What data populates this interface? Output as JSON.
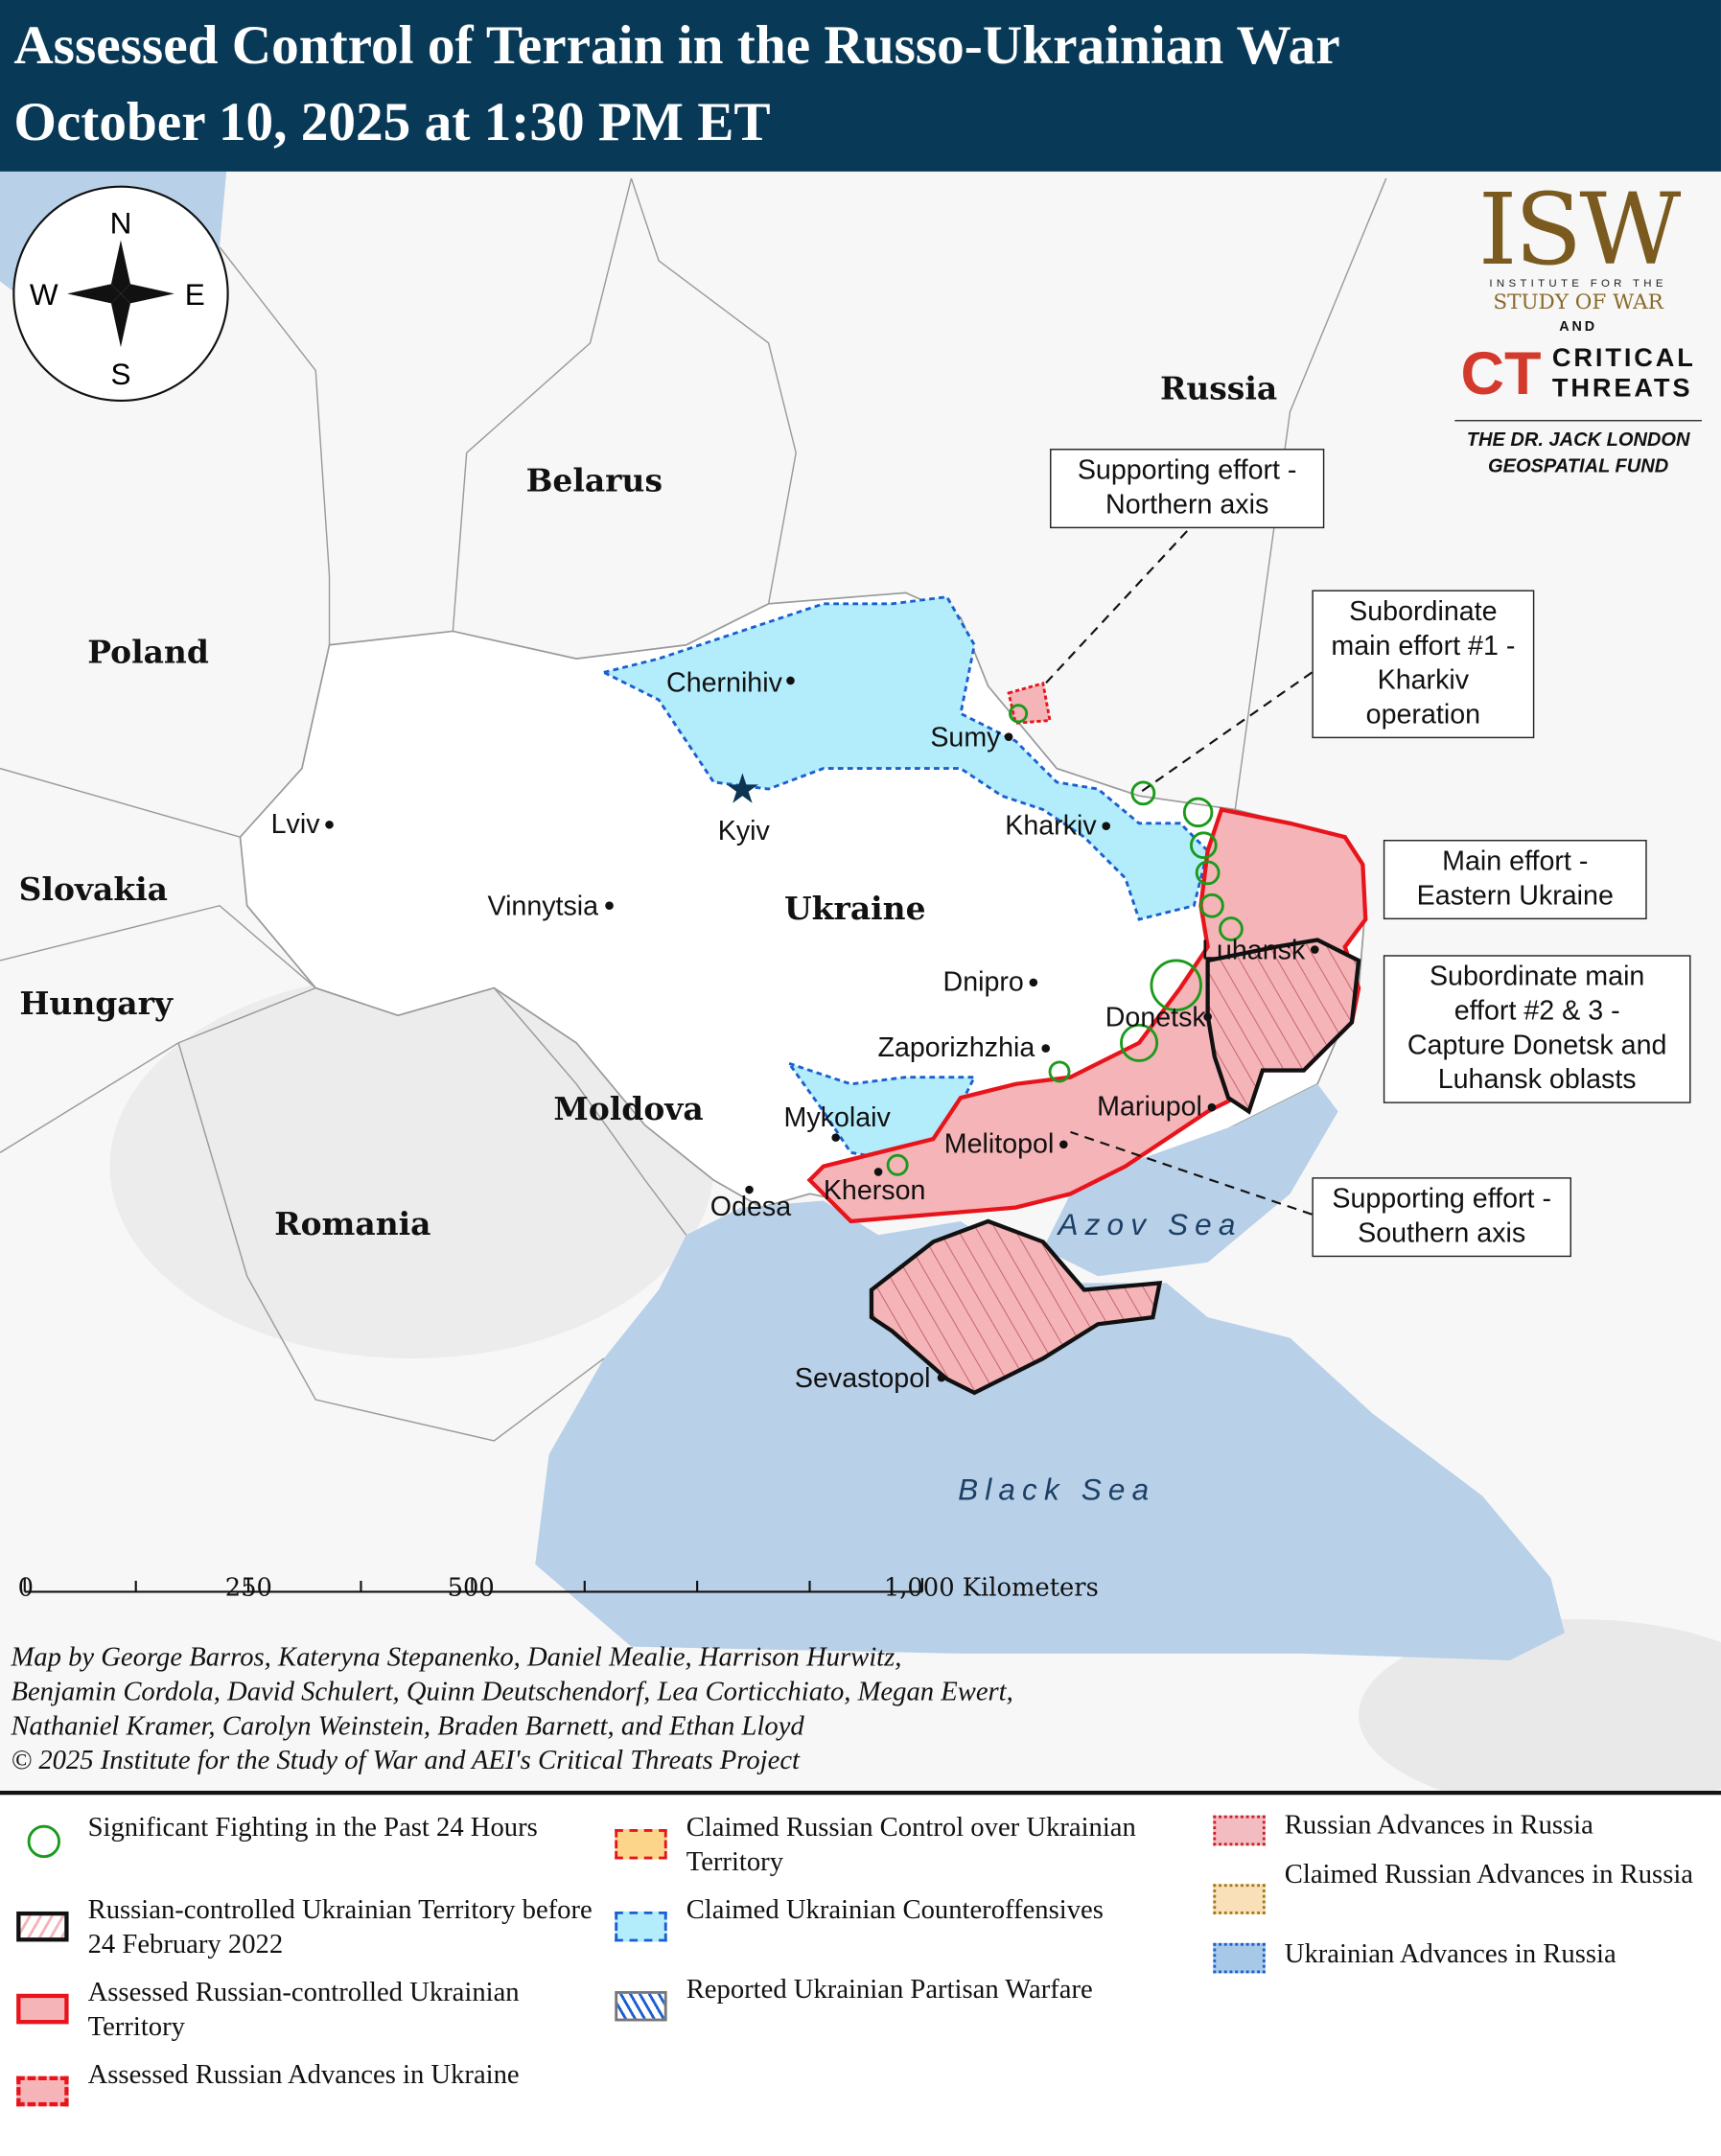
{
  "header": {
    "title": "Assessed Control of Terrain in the Russo-Ukrainian War",
    "date": "October 10, 2025 at 1:30 PM ET",
    "bg_color": "#083a58"
  },
  "compass": {
    "n": "N",
    "s": "S",
    "e": "E",
    "w": "W"
  },
  "logo": {
    "isw": "ISW",
    "isw_sub1": "INSTITUTE FOR THE",
    "isw_sub2": "STUDY OF WAR",
    "and": "AND",
    "ct": "CT",
    "ct1": "CRITICAL",
    "ct2": "THREATS",
    "fund1": "THE DR. JACK LONDON",
    "fund2": "GEOSPATIAL FUND"
  },
  "countries": {
    "russia": "Russia",
    "belarus": "Belarus",
    "poland": "Poland",
    "slovakia": "Slovakia",
    "hungary": "Hungary",
    "moldova": "Moldova",
    "romania": "Romania",
    "ukraine": "Ukraine"
  },
  "cities": {
    "chernihiv": "Chernihiv",
    "sumy": "Sumy",
    "kharkiv": "Kharkiv",
    "kyiv": "Kyiv",
    "lviv": "Lviv",
    "vinnytsia": "Vinnytsia",
    "dnipro": "Dnipro",
    "zaporizhzhia": "Zaporizhzhia",
    "mykolaiv": "Mykolaiv",
    "kherson": "Kherson",
    "odesa": "Odesa",
    "melitopol": "Melitopol",
    "mariupol": "Mariupol",
    "donetsk": "Donetsk",
    "luhansk": "Luhansk",
    "sevastopol": "Sevastopol"
  },
  "seas": {
    "azov": "Azov Sea",
    "black": "Black Sea"
  },
  "callouts": {
    "northern": [
      "Supporting effort -",
      "Northern axis"
    ],
    "kharkiv": [
      "Subordinate",
      "main effort #1 -",
      "Kharkiv",
      "operation"
    ],
    "eastern": [
      "Main effort -",
      "Eastern Ukraine"
    ],
    "donetsk": [
      "Subordinate main",
      "effort #2 & 3 -",
      "Capture Donetsk and",
      "Luhansk oblasts"
    ],
    "southern": [
      "Supporting effort -",
      "Southern axis"
    ]
  },
  "scale": {
    "t0": "0",
    "t250": "250",
    "t500": "500",
    "t1000": "1,000 Kilometers"
  },
  "credits": [
    "Map by George Barros, Kateryna Stepanenko, Daniel Mealie, Harrison Hurwitz,",
    "Benjamin Cordola, David Schulert, Quinn Deutschendorf, Lea Corticchiato, Megan Ewert,",
    "Nathaniel Kramer, Carolyn Weinstein, Braden Barnett, and Ethan Lloyd",
    "© 2025 Institute for the Study of War and AEI's Critical Threats Project"
  ],
  "legend": [
    {
      "label": "Significant Fighting in the Past 24 Hours",
      "symbol": "green-circle"
    },
    {
      "label": "Russian-controlled Ukrainian Territory before 24 February 2022",
      "symbol": "black-hatched"
    },
    {
      "label": "Assessed Russian-controlled Ukrainian Territory",
      "symbol": "red-solid"
    },
    {
      "label": "Assessed Russian Advances in Ukraine",
      "symbol": "red-dashed"
    },
    {
      "label": "Claimed Russian Control over Ukrainian Territory",
      "symbol": "orange-dashed"
    },
    {
      "label": "Claimed Ukrainian Counteroffensives",
      "symbol": "cyan-dashed"
    },
    {
      "label": "Reported Ukrainian Partisan Warfare",
      "symbol": "blue-hatched"
    },
    {
      "label": "Russian Advances in Russia",
      "symbol": "pink-dotted"
    },
    {
      "label": "Claimed Russian Advances in Russia",
      "symbol": "tan-dotted"
    },
    {
      "label": "Ukrainian Advances in Russia",
      "symbol": "blue-dotted"
    }
  ],
  "colors": {
    "russian_control": "#f4b4b8",
    "russian_border": "#e8141c",
    "ukr_claimed": "#b3ecfb",
    "sea": "#b8d0e8",
    "fighting": "#1a9a1a"
  }
}
